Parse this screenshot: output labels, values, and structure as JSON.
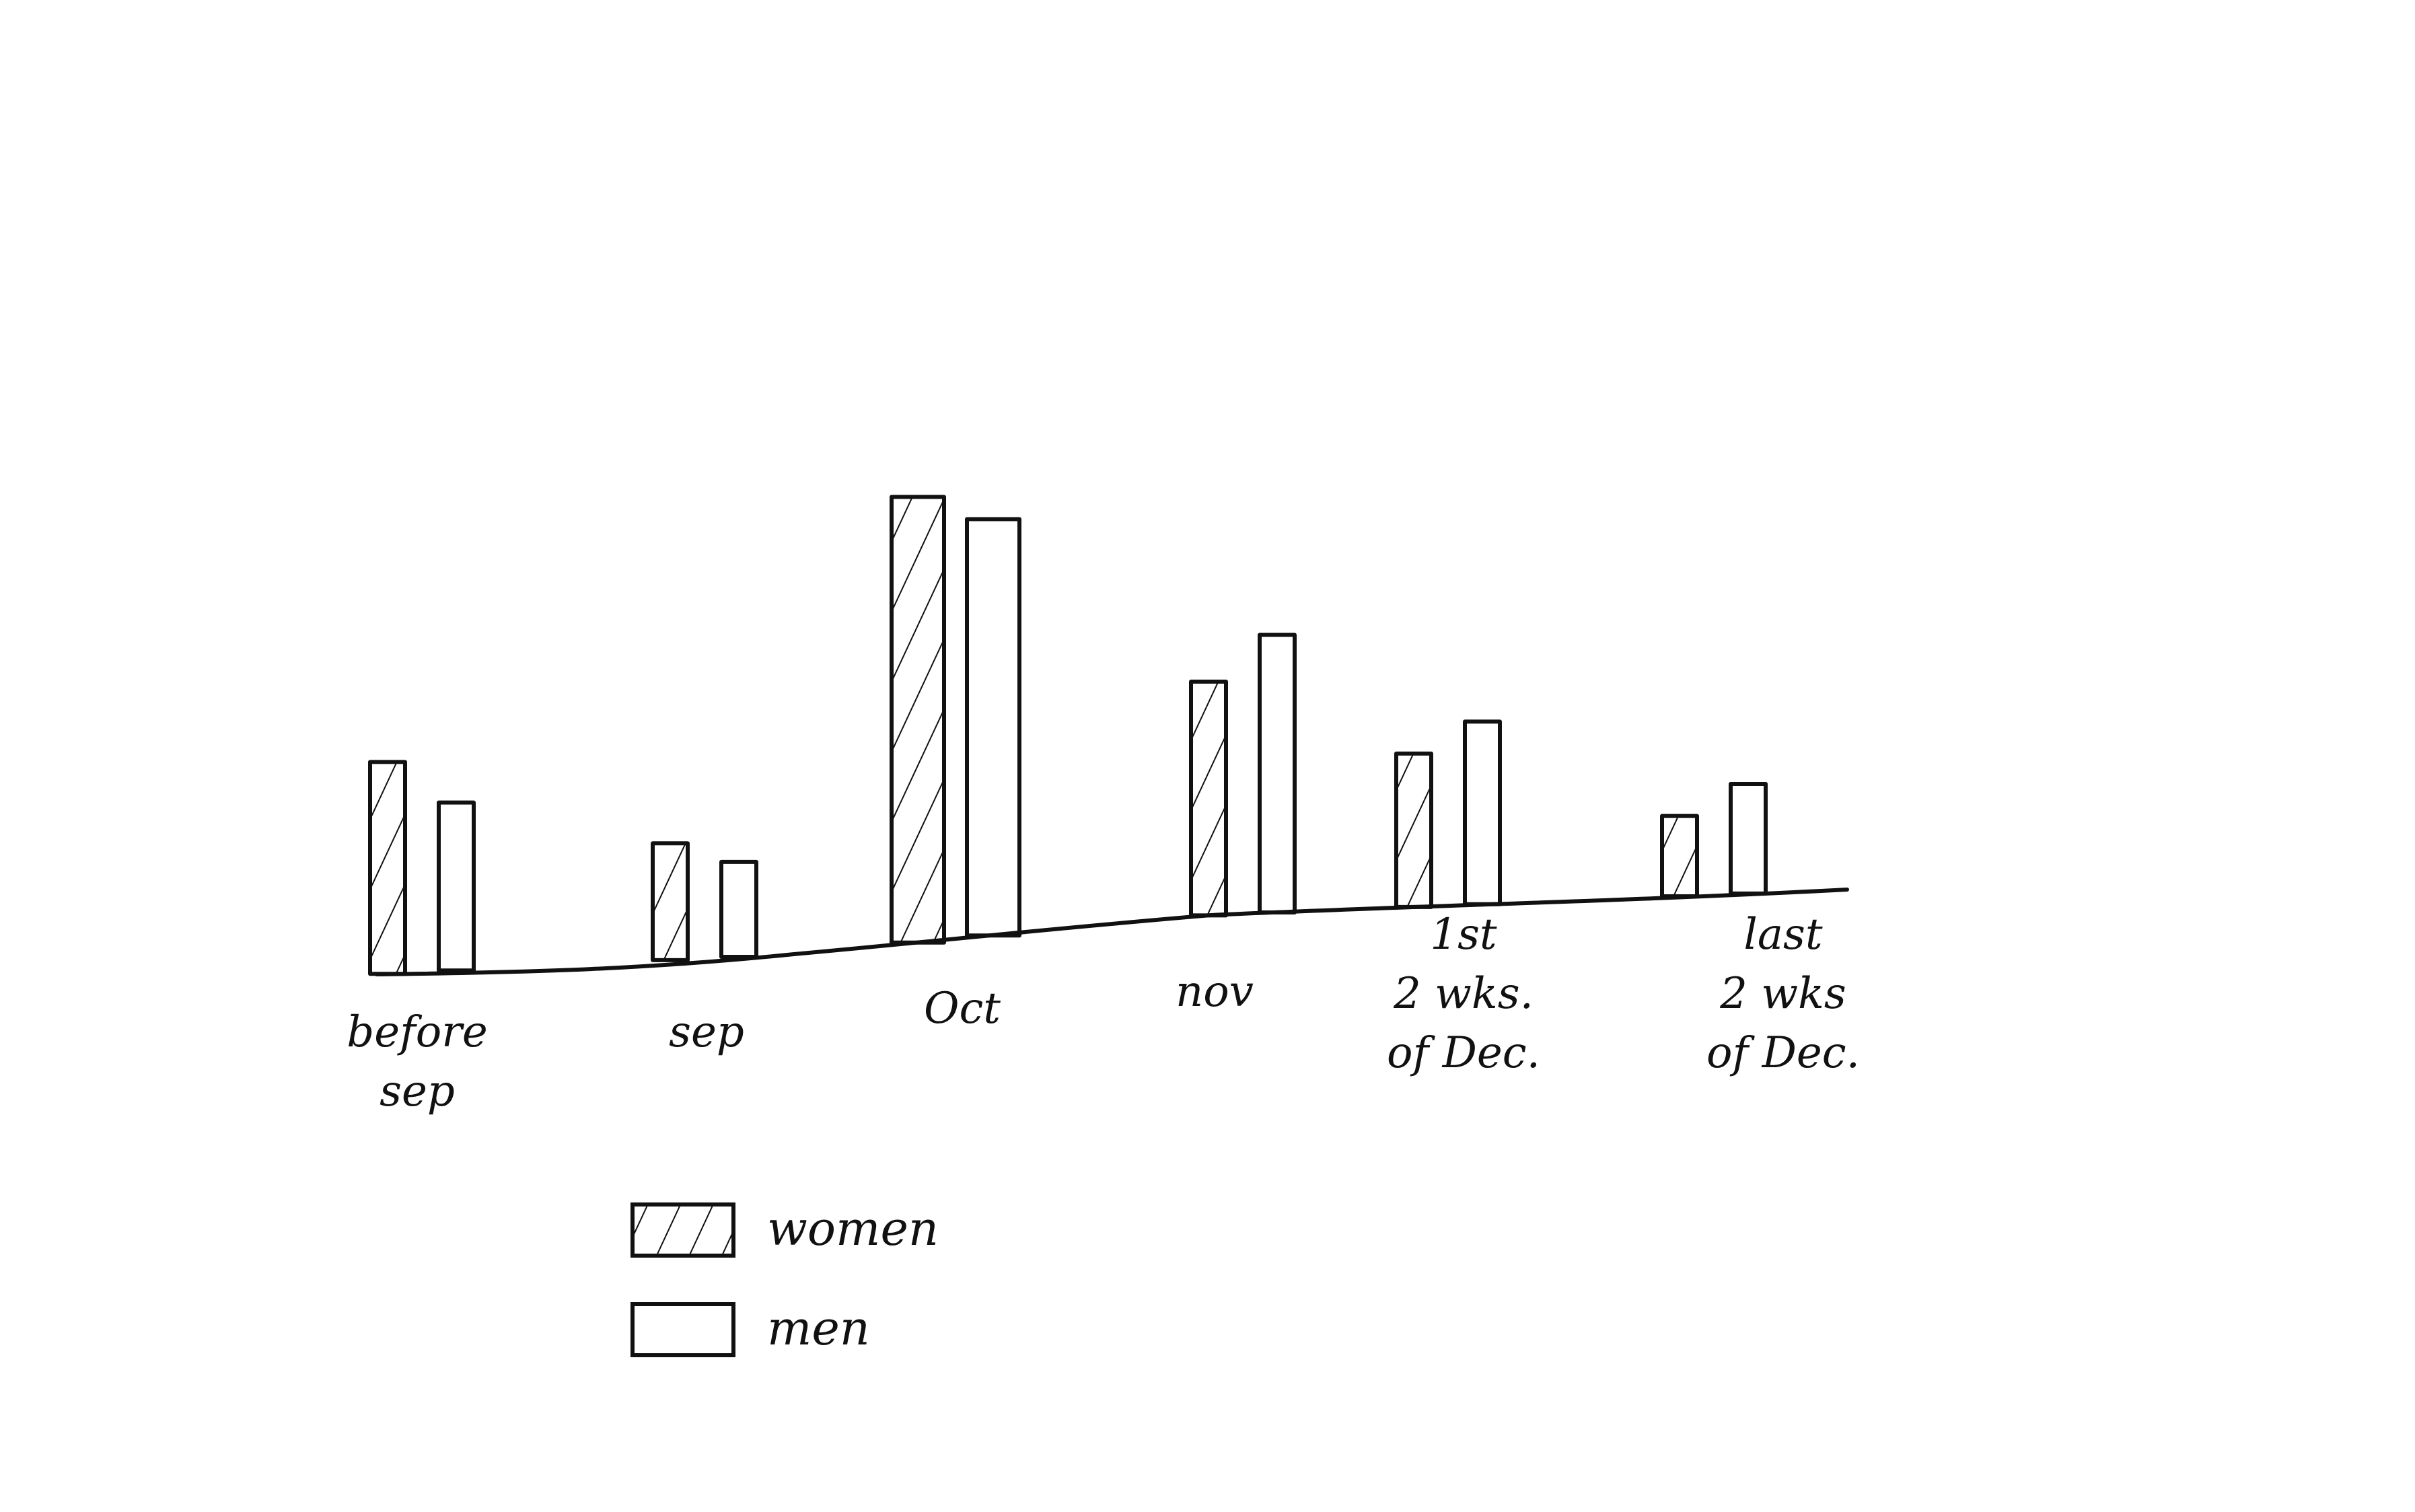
{
  "chart_data": {
    "type": "bar",
    "title": "",
    "xlabel": "",
    "ylabel": "",
    "grid": false,
    "legend": "bottom-left",
    "categories": [
      [
        "before",
        "sep"
      ],
      [
        "sep"
      ],
      [
        "Oct"
      ],
      [
        "nov"
      ],
      [
        "1st",
        "2 wks.",
        "of Dec."
      ],
      [
        "last",
        "2 wks",
        "of Dec."
      ]
    ],
    "series": [
      {
        "name": "women",
        "pattern": "hatched",
        "values": [
          29,
          16,
          61,
          32,
          21,
          11
        ]
      },
      {
        "name": "men",
        "pattern": "empty",
        "values": [
          23,
          13,
          57,
          38,
          25,
          15
        ]
      }
    ],
    "ylim": [
      0,
      70
    ],
    "colors": {
      "ink": "#111111",
      "paper": "#ffffff"
    }
  }
}
